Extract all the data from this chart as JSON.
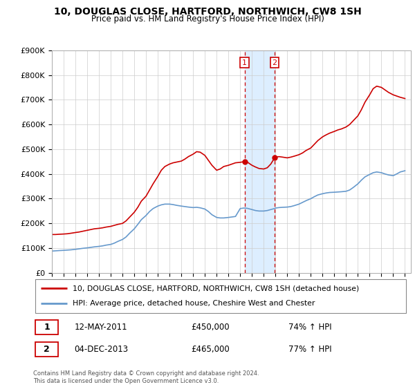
{
  "title": "10, DOUGLAS CLOSE, HARTFORD, NORTHWICH, CW8 1SH",
  "subtitle": "Price paid vs. HM Land Registry's House Price Index (HPI)",
  "legend_line1": "10, DOUGLAS CLOSE, HARTFORD, NORTHWICH, CW8 1SH (detached house)",
  "legend_line2": "HPI: Average price, detached house, Cheshire West and Chester",
  "annotation1_label": "1",
  "annotation1_date": "12-MAY-2011",
  "annotation1_price": "£450,000",
  "annotation1_hpi": "74% ↑ HPI",
  "annotation1_year": 2011.37,
  "annotation1_value": 450000,
  "annotation2_label": "2",
  "annotation2_date": "04-DEC-2013",
  "annotation2_price": "£465,000",
  "annotation2_hpi": "77% ↑ HPI",
  "annotation2_year": 2013.92,
  "annotation2_value": 465000,
  "note": "Contains HM Land Registry data © Crown copyright and database right 2024.\nThis data is licensed under the Open Government Licence v3.0.",
  "hpi_color": "#6699cc",
  "price_color": "#cc0000",
  "annotation_color": "#cc0000",
  "shade_color": "#ddeeff",
  "ylim": [
    0,
    900000
  ],
  "yticks": [
    0,
    100000,
    200000,
    300000,
    400000,
    500000,
    600000,
    700000,
    800000,
    900000
  ],
  "red_line_x": [
    1995.0,
    1995.3,
    1995.6,
    1996.0,
    1996.3,
    1996.6,
    1997.0,
    1997.3,
    1997.6,
    1998.0,
    1998.3,
    1998.6,
    1999.0,
    1999.3,
    1999.6,
    2000.0,
    2000.3,
    2000.6,
    2001.0,
    2001.3,
    2001.6,
    2002.0,
    2002.3,
    2002.6,
    2003.0,
    2003.3,
    2003.6,
    2004.0,
    2004.3,
    2004.6,
    2005.0,
    2005.3,
    2005.6,
    2006.0,
    2006.3,
    2006.6,
    2007.0,
    2007.3,
    2007.6,
    2008.0,
    2008.3,
    2008.6,
    2009.0,
    2009.3,
    2009.6,
    2010.0,
    2010.3,
    2010.6,
    2011.0,
    2011.37,
    2011.6,
    2012.0,
    2012.3,
    2012.6,
    2013.0,
    2013.3,
    2013.6,
    2013.92,
    2014.0,
    2014.3,
    2014.6,
    2015.0,
    2015.3,
    2015.6,
    2016.0,
    2016.3,
    2016.6,
    2017.0,
    2017.3,
    2017.6,
    2018.0,
    2018.3,
    2018.6,
    2019.0,
    2019.3,
    2019.6,
    2020.0,
    2020.3,
    2020.6,
    2021.0,
    2021.3,
    2021.6,
    2022.0,
    2022.3,
    2022.6,
    2023.0,
    2023.3,
    2023.6,
    2024.0,
    2024.3,
    2024.6,
    2025.0
  ],
  "red_line_y": [
    155000,
    155000,
    156000,
    157000,
    158000,
    160000,
    163000,
    165000,
    168000,
    172000,
    175000,
    178000,
    180000,
    182000,
    185000,
    188000,
    192000,
    196000,
    200000,
    210000,
    225000,
    245000,
    265000,
    290000,
    310000,
    335000,
    360000,
    390000,
    415000,
    430000,
    440000,
    445000,
    448000,
    452000,
    460000,
    470000,
    480000,
    490000,
    488000,
    475000,
    455000,
    435000,
    415000,
    420000,
    430000,
    435000,
    440000,
    445000,
    447000,
    450000,
    448000,
    435000,
    428000,
    422000,
    420000,
    425000,
    440000,
    465000,
    468000,
    470000,
    468000,
    465000,
    468000,
    472000,
    478000,
    485000,
    495000,
    505000,
    520000,
    535000,
    550000,
    558000,
    565000,
    572000,
    578000,
    582000,
    590000,
    600000,
    615000,
    635000,
    660000,
    690000,
    720000,
    745000,
    755000,
    750000,
    740000,
    730000,
    720000,
    715000,
    710000,
    705000
  ],
  "blue_line_x": [
    1995.0,
    1995.3,
    1995.6,
    1996.0,
    1996.3,
    1996.6,
    1997.0,
    1997.3,
    1997.6,
    1998.0,
    1998.3,
    1998.6,
    1999.0,
    1999.3,
    1999.6,
    2000.0,
    2000.3,
    2000.6,
    2001.0,
    2001.3,
    2001.6,
    2002.0,
    2002.3,
    2002.6,
    2003.0,
    2003.3,
    2003.6,
    2004.0,
    2004.3,
    2004.6,
    2005.0,
    2005.3,
    2005.6,
    2006.0,
    2006.3,
    2006.6,
    2007.0,
    2007.3,
    2007.6,
    2008.0,
    2008.3,
    2008.6,
    2009.0,
    2009.3,
    2009.6,
    2010.0,
    2010.3,
    2010.6,
    2011.0,
    2011.3,
    2011.6,
    2012.0,
    2012.3,
    2012.6,
    2013.0,
    2013.3,
    2013.6,
    2013.92,
    2014.0,
    2014.3,
    2014.6,
    2015.0,
    2015.3,
    2015.6,
    2016.0,
    2016.3,
    2016.6,
    2017.0,
    2017.3,
    2017.6,
    2018.0,
    2018.3,
    2018.6,
    2019.0,
    2019.3,
    2019.6,
    2020.0,
    2020.3,
    2020.6,
    2021.0,
    2021.3,
    2021.6,
    2022.0,
    2022.3,
    2022.6,
    2023.0,
    2023.3,
    2023.6,
    2024.0,
    2024.3,
    2024.6,
    2025.0
  ],
  "blue_line_y": [
    88000,
    89000,
    90000,
    91000,
    92000,
    93000,
    95000,
    97000,
    99000,
    101000,
    103000,
    105000,
    107000,
    109000,
    112000,
    115000,
    120000,
    127000,
    135000,
    145000,
    160000,
    178000,
    196000,
    215000,
    232000,
    248000,
    260000,
    270000,
    275000,
    278000,
    278000,
    276000,
    273000,
    270000,
    268000,
    266000,
    264000,
    265000,
    263000,
    258000,
    248000,
    235000,
    224000,
    222000,
    222000,
    224000,
    226000,
    228000,
    260000,
    262000,
    261000,
    256000,
    252000,
    250000,
    250000,
    252000,
    256000,
    260000,
    262000,
    264000,
    265000,
    266000,
    268000,
    272000,
    278000,
    285000,
    292000,
    300000,
    308000,
    315000,
    320000,
    323000,
    325000,
    326000,
    327000,
    328000,
    330000,
    335000,
    345000,
    360000,
    375000,
    388000,
    398000,
    405000,
    408000,
    405000,
    400000,
    396000,
    393000,
    400000,
    408000,
    413000
  ]
}
